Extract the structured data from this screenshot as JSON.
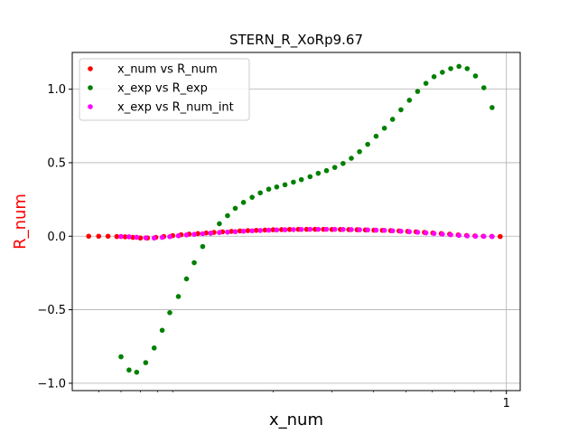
{
  "chart_data": {
    "type": "scatter",
    "title": "STERN_R_XoRp9.67",
    "xlabel": "x_num",
    "ylabel": "R_num",
    "ylabel_color": "#ff0000",
    "xscale": "log",
    "xlim": [
      0.05,
      1.1
    ],
    "ylim": [
      -1.05,
      1.25
    ],
    "yticks": [
      -1.0,
      -0.5,
      0.0,
      0.5,
      1.0
    ],
    "ytick_labels": [
      "−1.0",
      "−0.5",
      "0.0",
      "0.5",
      "1.0"
    ],
    "xticks": [
      1
    ],
    "xtick_labels": [
      "1"
    ],
    "grid": true,
    "legend_position": "top-left",
    "series": [
      {
        "name": "x_num vs R_num",
        "color": "#ff0000",
        "points": [
          [
            0.056,
            0.0
          ],
          [
            0.06,
            0.0
          ],
          [
            0.064,
            0.0
          ],
          [
            0.068,
            -0.002
          ],
          [
            0.072,
            -0.004
          ],
          [
            0.076,
            -0.008
          ],
          [
            0.08,
            -0.012
          ],
          [
            0.084,
            -0.012
          ],
          [
            0.089,
            -0.008
          ],
          [
            0.094,
            -0.002
          ],
          [
            0.1,
            0.004
          ],
          [
            0.106,
            0.01
          ],
          [
            0.112,
            0.014
          ],
          [
            0.119,
            0.018
          ],
          [
            0.126,
            0.022
          ],
          [
            0.133,
            0.026
          ],
          [
            0.141,
            0.03
          ],
          [
            0.15,
            0.033
          ],
          [
            0.159,
            0.036
          ],
          [
            0.168,
            0.038
          ],
          [
            0.178,
            0.04
          ],
          [
            0.189,
            0.042
          ],
          [
            0.2,
            0.044
          ],
          [
            0.212,
            0.045
          ],
          [
            0.224,
            0.046
          ],
          [
            0.238,
            0.047
          ],
          [
            0.252,
            0.047
          ],
          [
            0.267,
            0.047
          ],
          [
            0.283,
            0.047
          ],
          [
            0.3,
            0.046
          ],
          [
            0.318,
            0.046
          ],
          [
            0.337,
            0.045
          ],
          [
            0.357,
            0.044
          ],
          [
            0.378,
            0.043
          ],
          [
            0.401,
            0.041
          ],
          [
            0.425,
            0.04
          ],
          [
            0.45,
            0.038
          ],
          [
            0.477,
            0.036
          ],
          [
            0.506,
            0.033
          ],
          [
            0.536,
            0.03
          ],
          [
            0.568,
            0.026
          ],
          [
            0.602,
            0.022
          ],
          [
            0.638,
            0.018
          ],
          [
            0.676,
            0.014
          ],
          [
            0.717,
            0.009
          ],
          [
            0.76,
            0.005
          ],
          [
            0.805,
            0.002
          ],
          [
            0.853,
            0.0
          ],
          [
            0.904,
            -0.001
          ],
          [
            0.958,
            -0.002
          ]
        ]
      },
      {
        "name": "x_exp vs R_exp",
        "color": "#008000",
        "points": [
          [
            0.07,
            -0.82
          ],
          [
            0.074,
            -0.91
          ],
          [
            0.078,
            -0.925
          ],
          [
            0.083,
            -0.86
          ],
          [
            0.088,
            -0.76
          ],
          [
            0.093,
            -0.64
          ],
          [
            0.098,
            -0.52
          ],
          [
            0.104,
            -0.41
          ],
          [
            0.11,
            -0.29
          ],
          [
            0.116,
            -0.18
          ],
          [
            0.123,
            -0.07
          ],
          [
            0.13,
            0.02
          ],
          [
            0.138,
            0.085
          ],
          [
            0.146,
            0.14
          ],
          [
            0.154,
            0.19
          ],
          [
            0.163,
            0.23
          ],
          [
            0.173,
            0.265
          ],
          [
            0.183,
            0.295
          ],
          [
            0.194,
            0.32
          ],
          [
            0.205,
            0.335
          ],
          [
            0.217,
            0.35
          ],
          [
            0.23,
            0.368
          ],
          [
            0.243,
            0.385
          ],
          [
            0.258,
            0.405
          ],
          [
            0.273,
            0.428
          ],
          [
            0.289,
            0.446
          ],
          [
            0.306,
            0.468
          ],
          [
            0.324,
            0.495
          ],
          [
            0.343,
            0.53
          ],
          [
            0.363,
            0.575
          ],
          [
            0.384,
            0.625
          ],
          [
            0.407,
            0.68
          ],
          [
            0.431,
            0.735
          ],
          [
            0.456,
            0.795
          ],
          [
            0.483,
            0.86
          ],
          [
            0.512,
            0.925
          ],
          [
            0.542,
            0.985
          ],
          [
            0.574,
            1.04
          ],
          [
            0.607,
            1.085
          ],
          [
            0.643,
            1.115
          ],
          [
            0.681,
            1.14
          ],
          [
            0.721,
            1.155
          ],
          [
            0.763,
            1.14
          ],
          [
            0.808,
            1.09
          ],
          [
            0.856,
            1.01
          ],
          [
            0.906,
            0.875
          ]
        ]
      },
      {
        "name": "x_exp vs R_num_int",
        "color": "#ff00ff",
        "points": [
          [
            0.07,
            -0.002
          ],
          [
            0.074,
            -0.004
          ],
          [
            0.078,
            -0.007
          ],
          [
            0.083,
            -0.011
          ],
          [
            0.088,
            -0.012
          ],
          [
            0.093,
            -0.008
          ],
          [
            0.098,
            -0.003
          ],
          [
            0.104,
            0.003
          ],
          [
            0.11,
            0.009
          ],
          [
            0.116,
            0.013
          ],
          [
            0.123,
            0.017
          ],
          [
            0.13,
            0.021
          ],
          [
            0.138,
            0.025
          ],
          [
            0.146,
            0.028
          ],
          [
            0.154,
            0.031
          ],
          [
            0.163,
            0.034
          ],
          [
            0.173,
            0.037
          ],
          [
            0.183,
            0.039
          ],
          [
            0.194,
            0.041
          ],
          [
            0.205,
            0.043
          ],
          [
            0.217,
            0.044
          ],
          [
            0.23,
            0.045
          ],
          [
            0.243,
            0.046
          ],
          [
            0.258,
            0.047
          ],
          [
            0.273,
            0.047
          ],
          [
            0.289,
            0.047
          ],
          [
            0.306,
            0.047
          ],
          [
            0.324,
            0.046
          ],
          [
            0.343,
            0.045
          ],
          [
            0.363,
            0.044
          ],
          [
            0.384,
            0.043
          ],
          [
            0.407,
            0.041
          ],
          [
            0.431,
            0.04
          ],
          [
            0.456,
            0.037
          ],
          [
            0.483,
            0.034
          ],
          [
            0.512,
            0.031
          ],
          [
            0.542,
            0.027
          ],
          [
            0.574,
            0.023
          ],
          [
            0.607,
            0.019
          ],
          [
            0.643,
            0.014
          ],
          [
            0.681,
            0.01
          ],
          [
            0.721,
            0.006
          ],
          [
            0.763,
            0.002
          ],
          [
            0.808,
            0.0
          ],
          [
            0.856,
            -0.001
          ],
          [
            0.906,
            -0.002
          ]
        ]
      }
    ]
  }
}
